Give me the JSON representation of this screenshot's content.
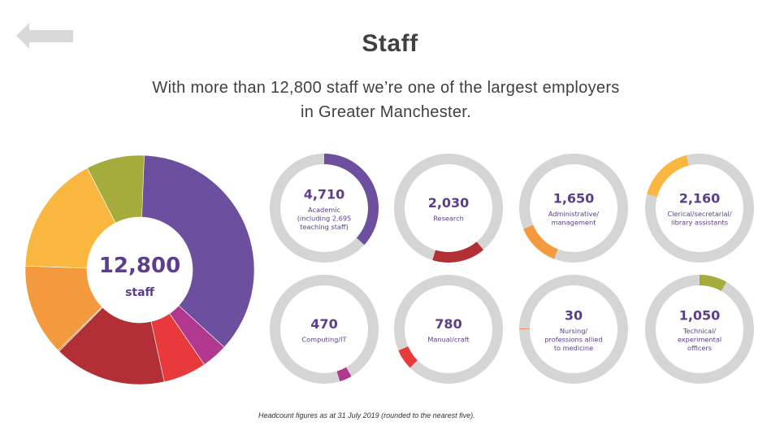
{
  "page": {
    "title": "Staff",
    "subtitle_line1": "With more than 12,800 staff we’re one of the largest employers",
    "subtitle_line2": "in Greater Manchester.",
    "footnote": "Headcount figures as at 31 July 2019 (rounded to the nearest five).",
    "back_icon": "back-arrow-icon"
  },
  "chart_data": {
    "type": "pie",
    "title": "Staff",
    "total": {
      "value": "12,800",
      "label": "staff",
      "number": 12800
    },
    "colors": {
      "ring_bg": "#d5d5d5",
      "label_text": "#5b3f8c"
    },
    "categories": [
      {
        "value": 4710,
        "display": "4,710",
        "lines": [
          "Academic",
          "(including 2,695",
          "teaching staff)"
        ],
        "color": "#6c4f9e"
      },
      {
        "value": 2030,
        "display": "2,030",
        "lines": [
          "Research"
        ],
        "color": "#b22f35"
      },
      {
        "value": 1650,
        "display": "1,650",
        "lines": [
          "Administrative/",
          "management"
        ],
        "color": "#f39a3e"
      },
      {
        "value": 2160,
        "display": "2,160",
        "lines": [
          "Clerical/secretarial/",
          "library assistants"
        ],
        "color": "#fab73f"
      },
      {
        "value": 470,
        "display": "470",
        "lines": [
          "Computing/IT"
        ],
        "color": "#b2388f"
      },
      {
        "value": 780,
        "display": "780",
        "lines": [
          "Manual/craft"
        ],
        "color": "#e83a3a"
      },
      {
        "value": 30,
        "display": "30",
        "lines": [
          "Nursing/",
          "professions allied",
          "to medicine"
        ],
        "color": "#f08a4b"
      },
      {
        "value": 1050,
        "display": "1,050",
        "lines": [
          "Technical/",
          "experimental",
          "officers"
        ],
        "color": "#a5ac3b"
      }
    ],
    "pie_order": [
      0,
      4,
      5,
      1,
      6,
      2,
      3,
      7
    ]
  }
}
